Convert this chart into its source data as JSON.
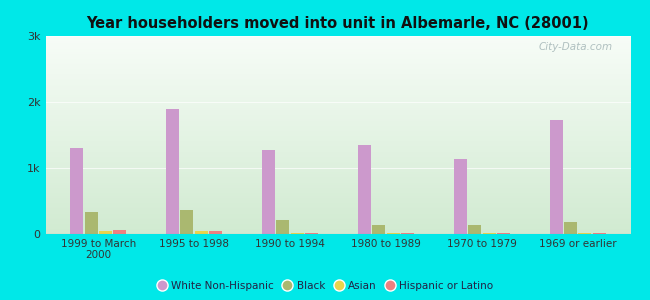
{
  "title": "Year householders moved into unit in Albemarle, NC (28001)",
  "categories": [
    "1999 to March\n2000",
    "1995 to 1998",
    "1990 to 1994",
    "1980 to 1989",
    "1970 to 1979",
    "1969 or earlier"
  ],
  "series": {
    "White Non-Hispanic": [
      1300,
      1900,
      1280,
      1350,
      1130,
      1720
    ],
    "Black": [
      330,
      360,
      210,
      130,
      130,
      185
    ],
    "Asian": [
      50,
      45,
      15,
      10,
      10,
      15
    ],
    "Hispanic or Latino": [
      65,
      45,
      12,
      18,
      10,
      20
    ]
  },
  "colors": {
    "White Non-Hispanic": "#cc99cc",
    "Black": "#aab870",
    "Asian": "#e8d44d",
    "Hispanic or Latino": "#f08080"
  },
  "ylim": [
    0,
    3000
  ],
  "yticks": [
    0,
    1000,
    2000,
    3000
  ],
  "ytick_labels": [
    "0",
    "1k",
    "2k",
    "3k"
  ],
  "background_color": "#00e8e8",
  "watermark": "City-Data.com",
  "bar_width": 0.15
}
